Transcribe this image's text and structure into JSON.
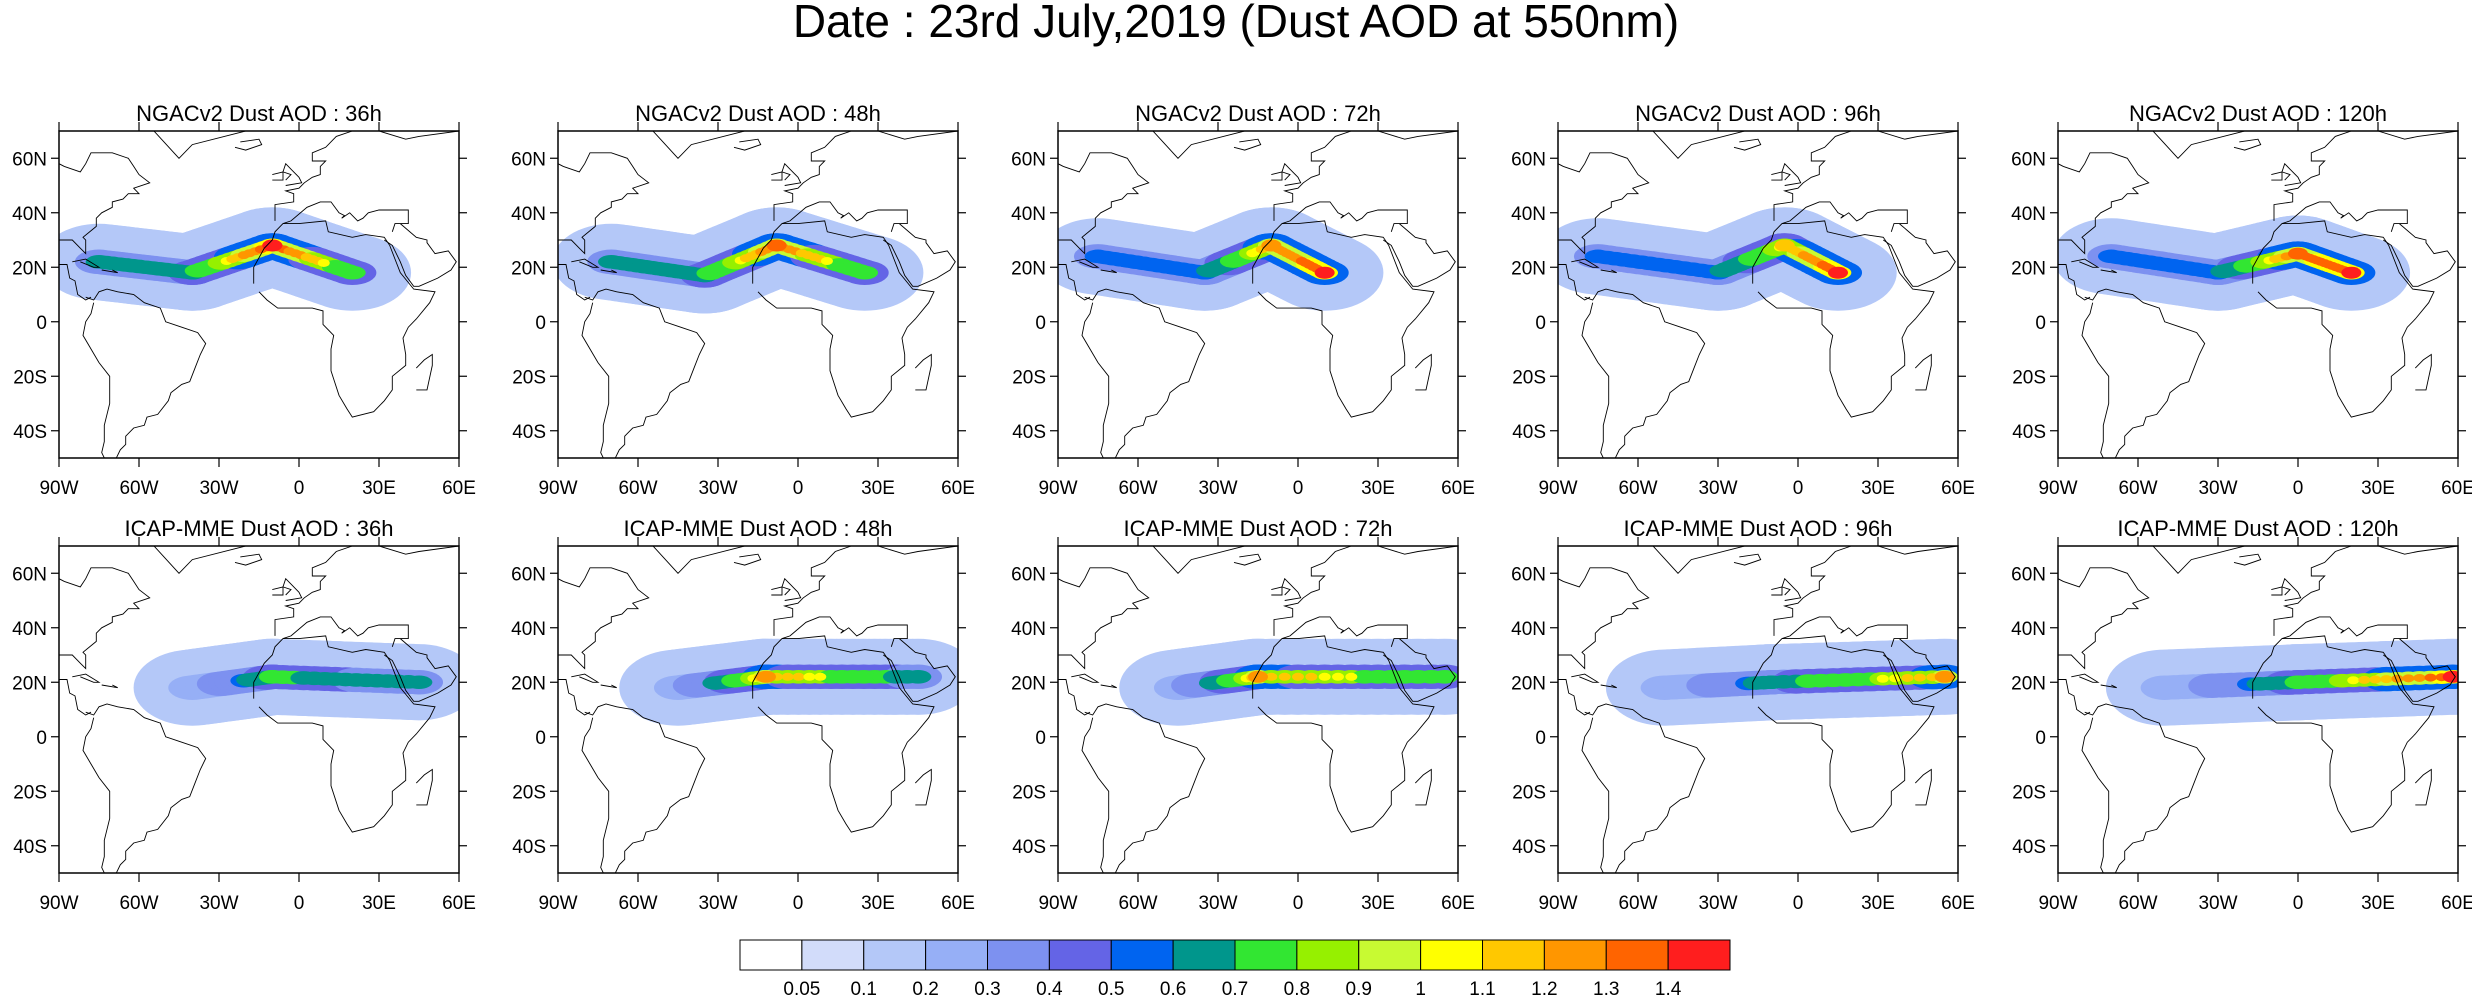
{
  "title": "Date : 23rd July,2019 (Dust AOD at 550nm)",
  "lat_ticks": [
    "60N",
    "40N",
    "20N",
    "0",
    "20S",
    "40S"
  ],
  "lat_values": [
    60,
    40,
    20,
    0,
    -20,
    -40
  ],
  "lon_ticks": [
    "90W",
    "60W",
    "30W",
    "0",
    "30E",
    "60E"
  ],
  "lon_values": [
    -90,
    -60,
    -30,
    0,
    30,
    60
  ],
  "map_extent": {
    "lon": [
      -90,
      60
    ],
    "lat": [
      -50,
      70
    ]
  },
  "panels": [
    {
      "row": 0,
      "col": 0,
      "title": "NGACv2 Dust AOD : 36h"
    },
    {
      "row": 0,
      "col": 1,
      "title": "NGACv2 Dust AOD : 48h"
    },
    {
      "row": 0,
      "col": 2,
      "title": "NGACv2 Dust AOD : 72h"
    },
    {
      "row": 0,
      "col": 3,
      "title": "NGACv2 Dust AOD : 96h"
    },
    {
      "row": 0,
      "col": 4,
      "title": "NGACv2 Dust AOD : 120h"
    },
    {
      "row": 1,
      "col": 0,
      "title": "ICAP-MME Dust AOD : 36h"
    },
    {
      "row": 1,
      "col": 1,
      "title": "ICAP-MME Dust AOD : 48h"
    },
    {
      "row": 1,
      "col": 2,
      "title": "ICAP-MME Dust AOD : 72h"
    },
    {
      "row": 1,
      "col": 3,
      "title": "ICAP-MME Dust AOD : 96h"
    },
    {
      "row": 1,
      "col": 4,
      "title": "ICAP-MME Dust AOD : 120h"
    }
  ],
  "colorbar": {
    "labels": [
      "0.05",
      "0.1",
      "0.2",
      "0.3",
      "0.4",
      "0.5",
      "0.6",
      "0.7",
      "0.8",
      "0.9",
      "1",
      "1.1",
      "1.2",
      "1.3",
      "1.4"
    ],
    "colors": [
      "#ffffff",
      "#d2dcfa",
      "#b4c8f8",
      "#96aff6",
      "#7d91f0",
      "#6464e6",
      "#0064f0",
      "#00968c",
      "#32e632",
      "#96f000",
      "#c8fa32",
      "#ffff00",
      "#ffc800",
      "#ff9600",
      "#ff6400",
      "#ff1e1e"
    ]
  },
  "chart_data": [
    {
      "type": "heatmap",
      "title": "NGACv2 Dust AOD : 36h",
      "plume": [
        {
          "lon": -75,
          "lat": 22,
          "aod": 0.75
        },
        {
          "lon": -40,
          "lat": 18,
          "aod": 0.85
        },
        {
          "lon": -10,
          "lat": 28,
          "aod": 1.4
        },
        {
          "lon": 20,
          "lat": 18,
          "aod": 0.9
        }
      ]
    },
    {
      "type": "heatmap",
      "title": "NGACv2 Dust AOD : 48h",
      "plume": [
        {
          "lon": -70,
          "lat": 22,
          "aod": 0.75
        },
        {
          "lon": -35,
          "lat": 17,
          "aod": 0.85
        },
        {
          "lon": -8,
          "lat": 28,
          "aod": 1.3
        },
        {
          "lon": 25,
          "lat": 18,
          "aod": 0.9
        }
      ]
    },
    {
      "type": "heatmap",
      "title": "NGACv2 Dust AOD : 72h",
      "plume": [
        {
          "lon": -75,
          "lat": 24,
          "aod": 0.7
        },
        {
          "lon": -35,
          "lat": 18,
          "aod": 0.7
        },
        {
          "lon": -10,
          "lat": 28,
          "aod": 1.2
        },
        {
          "lon": 10,
          "lat": 18,
          "aod": 1.4
        }
      ]
    },
    {
      "type": "heatmap",
      "title": "NGACv2 Dust AOD : 96h",
      "plume": [
        {
          "lon": -75,
          "lat": 24,
          "aod": 0.7
        },
        {
          "lon": -30,
          "lat": 18,
          "aod": 0.7
        },
        {
          "lon": -5,
          "lat": 28,
          "aod": 1.1
        },
        {
          "lon": 15,
          "lat": 18,
          "aod": 1.4
        }
      ]
    },
    {
      "type": "heatmap",
      "title": "NGACv2 Dust AOD : 120h",
      "plume": [
        {
          "lon": -70,
          "lat": 24,
          "aod": 0.7
        },
        {
          "lon": -30,
          "lat": 18,
          "aod": 0.7
        },
        {
          "lon": 0,
          "lat": 25,
          "aod": 1.3
        },
        {
          "lon": 20,
          "lat": 18,
          "aod": 1.4
        }
      ]
    },
    {
      "type": "heatmap",
      "title": "ICAP-MME Dust AOD : 36h",
      "plume": [
        {
          "lon": -40,
          "lat": 18,
          "aod": 0.4
        },
        {
          "lon": -10,
          "lat": 22,
          "aod": 0.9
        },
        {
          "lon": 45,
          "lat": 20,
          "aod": 0.8
        }
      ]
    },
    {
      "type": "heatmap",
      "title": "ICAP-MME Dust AOD : 48h",
      "plume": [
        {
          "lon": -45,
          "lat": 18,
          "aod": 0.4
        },
        {
          "lon": -12,
          "lat": 22,
          "aod": 1.2
        },
        {
          "lon": 45,
          "lat": 22,
          "aod": 0.8
        }
      ]
    },
    {
      "type": "heatmap",
      "title": "ICAP-MME Dust AOD : 72h",
      "plume": [
        {
          "lon": -45,
          "lat": 18,
          "aod": 0.4
        },
        {
          "lon": -15,
          "lat": 22,
          "aod": 1.2
        },
        {
          "lon": 55,
          "lat": 22,
          "aod": 0.9
        }
      ]
    },
    {
      "type": "heatmap",
      "title": "ICAP-MME Dust AOD : 96h",
      "plume": [
        {
          "lon": -50,
          "lat": 18,
          "aod": 0.4
        },
        {
          "lon": -10,
          "lat": 20,
          "aod": 0.8
        },
        {
          "lon": 55,
          "lat": 22,
          "aod": 1.2
        }
      ]
    },
    {
      "type": "heatmap",
      "title": "ICAP-MME Dust AOD : 120h",
      "plume": [
        {
          "lon": -50,
          "lat": 18,
          "aod": 0.4
        },
        {
          "lon": 0,
          "lat": 20,
          "aod": 0.9
        },
        {
          "lon": 58,
          "lat": 22,
          "aod": 1.4
        }
      ]
    }
  ]
}
